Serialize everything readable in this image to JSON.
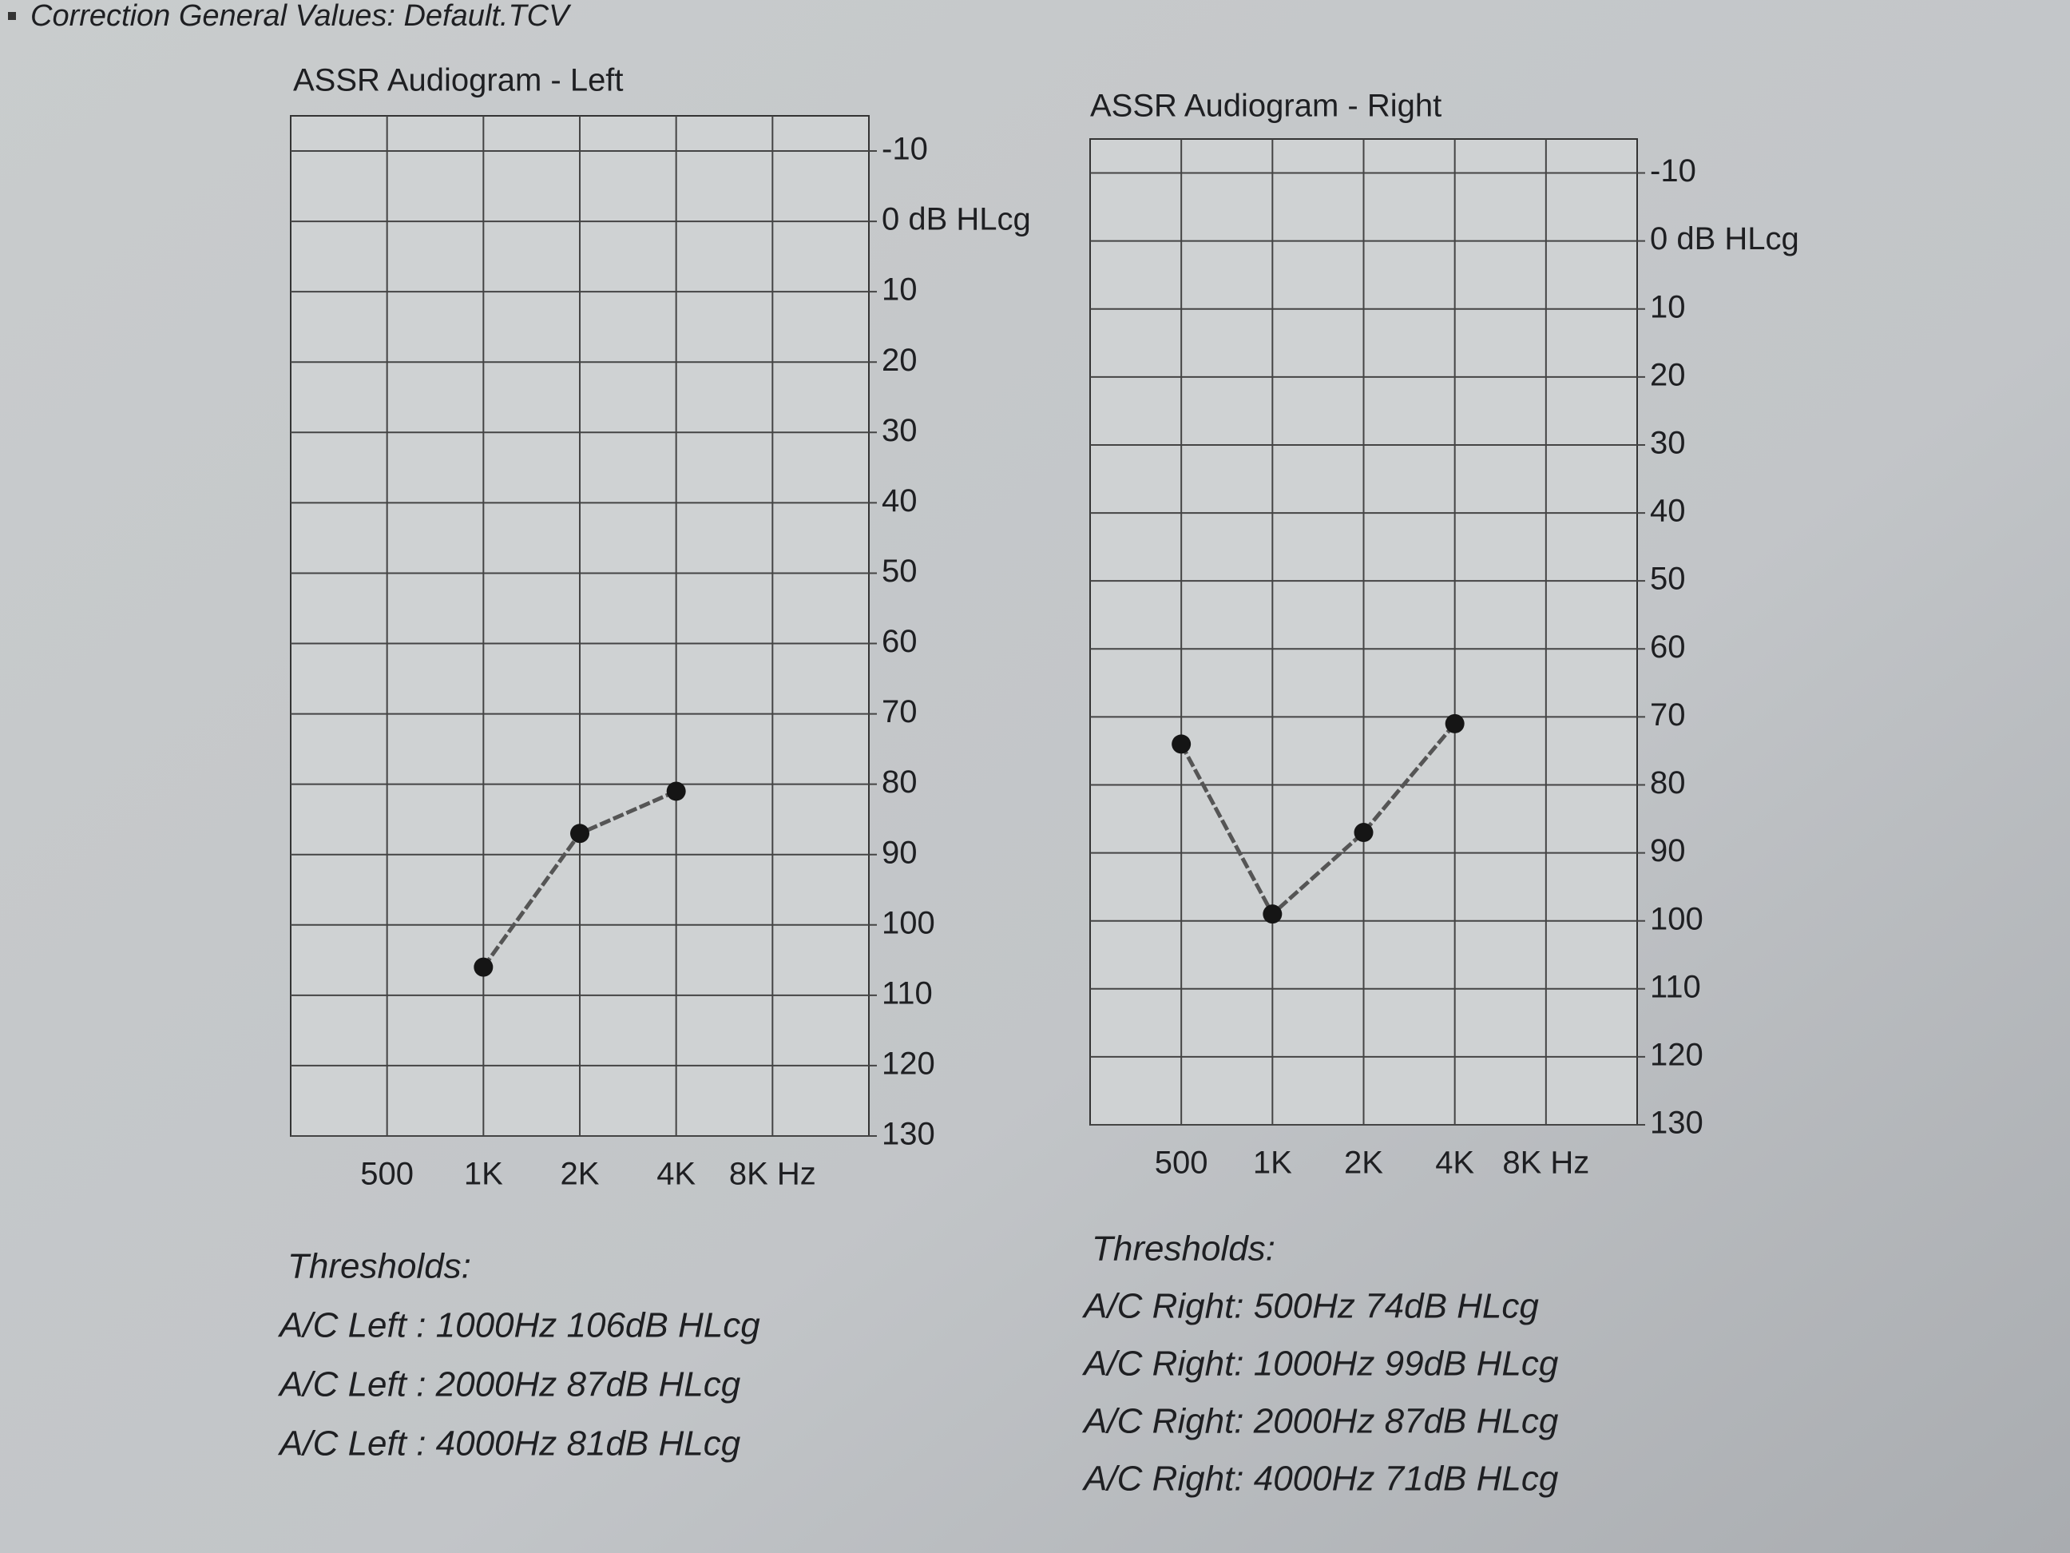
{
  "header": "Correction General Values: Default.TCV",
  "chart_data": [
    {
      "type": "line",
      "title": "ASSR Audiogram - Left",
      "categories": [
        "500",
        "1K",
        "2K",
        "4K",
        "8K Hz"
      ],
      "series": [
        {
          "name": "A/C Left",
          "color": "#555555",
          "values": [
            null,
            106,
            87,
            81,
            null
          ]
        }
      ],
      "ylim": [
        -15,
        130
      ],
      "y_inverted": true,
      "yticks": [
        -10,
        {
          "value": 0,
          "label": "0 dB HLcg"
        },
        10,
        20,
        30,
        40,
        50,
        60,
        70,
        80,
        90,
        100,
        110,
        120,
        130
      ],
      "grid": true,
      "annotations": [
        "Thresholds:",
        "A/C Left : 1000Hz 106dB HLcg",
        "A/C Left : 2000Hz  87dB HLcg",
        "A/C Left : 4000Hz  81dB HLcg"
      ]
    },
    {
      "type": "line",
      "title": "ASSR Audiogram - Right",
      "categories": [
        "500",
        "1K",
        "2K",
        "4K",
        "8K Hz"
      ],
      "series": [
        {
          "name": "A/C Right",
          "color": "#555555",
          "values": [
            74,
            99,
            87,
            71,
            null
          ]
        }
      ],
      "ylim": [
        -15,
        130
      ],
      "y_inverted": true,
      "yticks": [
        -10,
        {
          "value": 0,
          "label": "0 dB HLcg"
        },
        10,
        20,
        30,
        40,
        50,
        60,
        70,
        80,
        90,
        100,
        110,
        120,
        130
      ],
      "grid": true,
      "annotations": [
        "Thresholds:",
        "A/C Right:  500Hz  74dB HLcg",
        "A/C Right: 1000Hz  99dB HLcg",
        "A/C Right: 2000Hz  87dB HLcg",
        "A/C Right: 4000Hz  71dB HLcg"
      ]
    }
  ]
}
